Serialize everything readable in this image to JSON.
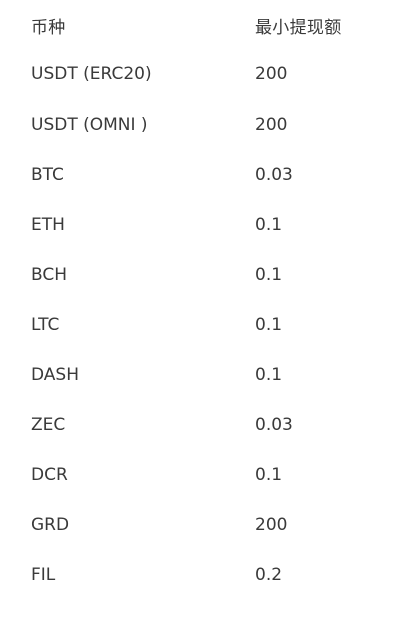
{
  "table": {
    "headers": {
      "coin": "币种",
      "min_withdrawal": "最小提现额"
    },
    "rows": [
      {
        "coin": "USDT (ERC20)",
        "min": "200"
      },
      {
        "coin": "USDT (OMNI )",
        "min": "200"
      },
      {
        "coin": "BTC",
        "min": "0.03"
      },
      {
        "coin": "ETH",
        "min": "0.1"
      },
      {
        "coin": "BCH",
        "min": "0.1"
      },
      {
        "coin": "LTC",
        "min": "0.1"
      },
      {
        "coin": "DASH",
        "min": "0.1"
      },
      {
        "coin": "ZEC",
        "min": "0.03"
      },
      {
        "coin": "DCR",
        "min": "0.1"
      },
      {
        "coin": "GRD",
        "min": "200"
      },
      {
        "coin": "FIL",
        "min": "0.2"
      }
    ]
  }
}
